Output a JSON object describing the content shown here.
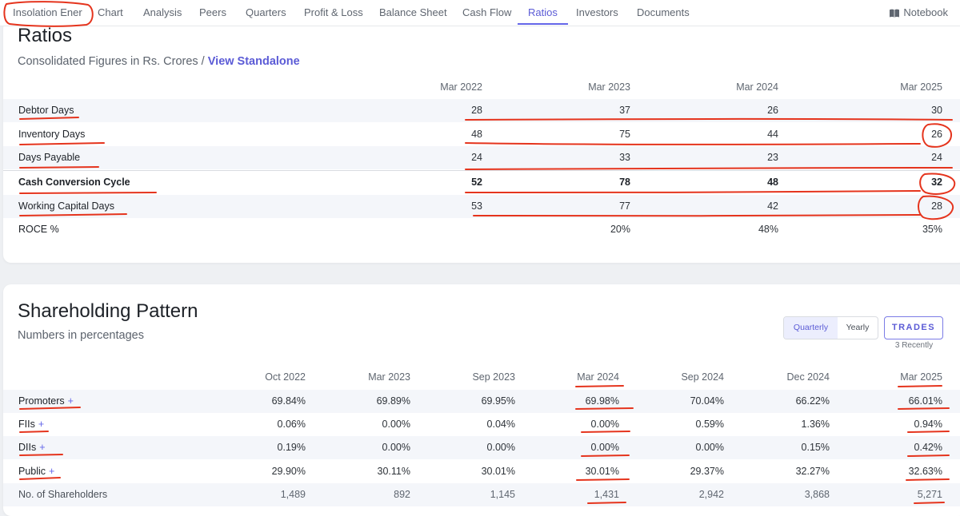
{
  "nav": {
    "items": [
      {
        "label": "Insolation Ener",
        "active": false
      },
      {
        "label": "Chart",
        "active": false
      },
      {
        "label": "Analysis",
        "active": false
      },
      {
        "label": "Peers",
        "active": false
      },
      {
        "label": "Quarters",
        "active": false
      },
      {
        "label": "Profit & Loss",
        "active": false
      },
      {
        "label": "Balance Sheet",
        "active": false
      },
      {
        "label": "Cash Flow",
        "active": false
      },
      {
        "label": "Ratios",
        "active": true
      },
      {
        "label": "Investors",
        "active": false
      },
      {
        "label": "Documents",
        "active": false
      }
    ],
    "notebook_label": "Notebook",
    "notebook_icon": "book-icon",
    "accent_color": "#5b5bd6"
  },
  "ratios": {
    "title": "Ratios",
    "subtitle": "Consolidated Figures in Rs. Crores /",
    "standalone_link": "View Standalone",
    "columns": [
      "Mar 2022",
      "Mar 2023",
      "Mar 2024",
      "Mar 2025"
    ],
    "rows": [
      {
        "label": "Debtor Days",
        "values": [
          "28",
          "37",
          "26",
          "30"
        ]
      },
      {
        "label": "Inventory Days",
        "values": [
          "48",
          "75",
          "44",
          "26"
        ]
      },
      {
        "label": "Days Payable",
        "values": [
          "24",
          "33",
          "23",
          "24"
        ]
      },
      {
        "label": "Cash Conversion Cycle",
        "values": [
          "52",
          "78",
          "48",
          "32"
        ]
      },
      {
        "label": "Working Capital Days",
        "values": [
          "53",
          "77",
          "42",
          "28"
        ]
      },
      {
        "label": "ROCE %",
        "values": [
          "",
          "20%",
          "48%",
          "35%"
        ]
      }
    ]
  },
  "shareholding": {
    "title": "Shareholding Pattern",
    "subtitle": "Numbers in percentages",
    "toggle": {
      "quarterly": "Quarterly",
      "yearly": "Yearly",
      "selected": "Quarterly"
    },
    "trades_label": "TRADES",
    "trades_sub": "3 Recently",
    "columns": [
      "Oct 2022",
      "Mar 2023",
      "Sep 2023",
      "Mar 2024",
      "Sep 2024",
      "Dec 2024",
      "Mar 2025"
    ],
    "rows": [
      {
        "label": "Promoters",
        "plus": "+",
        "values": [
          "69.84%",
          "69.89%",
          "69.95%",
          "69.98%",
          "70.04%",
          "66.22%",
          "66.01%"
        ]
      },
      {
        "label": "FIIs",
        "plus": "+",
        "values": [
          "0.06%",
          "0.00%",
          "0.04%",
          "0.00%",
          "0.59%",
          "1.36%",
          "0.94%"
        ]
      },
      {
        "label": "DIIs",
        "plus": "+",
        "values": [
          "0.19%",
          "0.00%",
          "0.00%",
          "0.00%",
          "0.00%",
          "0.15%",
          "0.42%"
        ]
      },
      {
        "label": "Public",
        "plus": "+",
        "values": [
          "29.90%",
          "30.11%",
          "30.01%",
          "30.01%",
          "29.37%",
          "32.27%",
          "32.63%"
        ]
      },
      {
        "label": "No. of Shareholders",
        "plus": "",
        "values": [
          "1,489",
          "892",
          "1,145",
          "1,431",
          "2,942",
          "3,868",
          "5,271"
        ]
      }
    ]
  },
  "annotation_color": "#e5341d"
}
